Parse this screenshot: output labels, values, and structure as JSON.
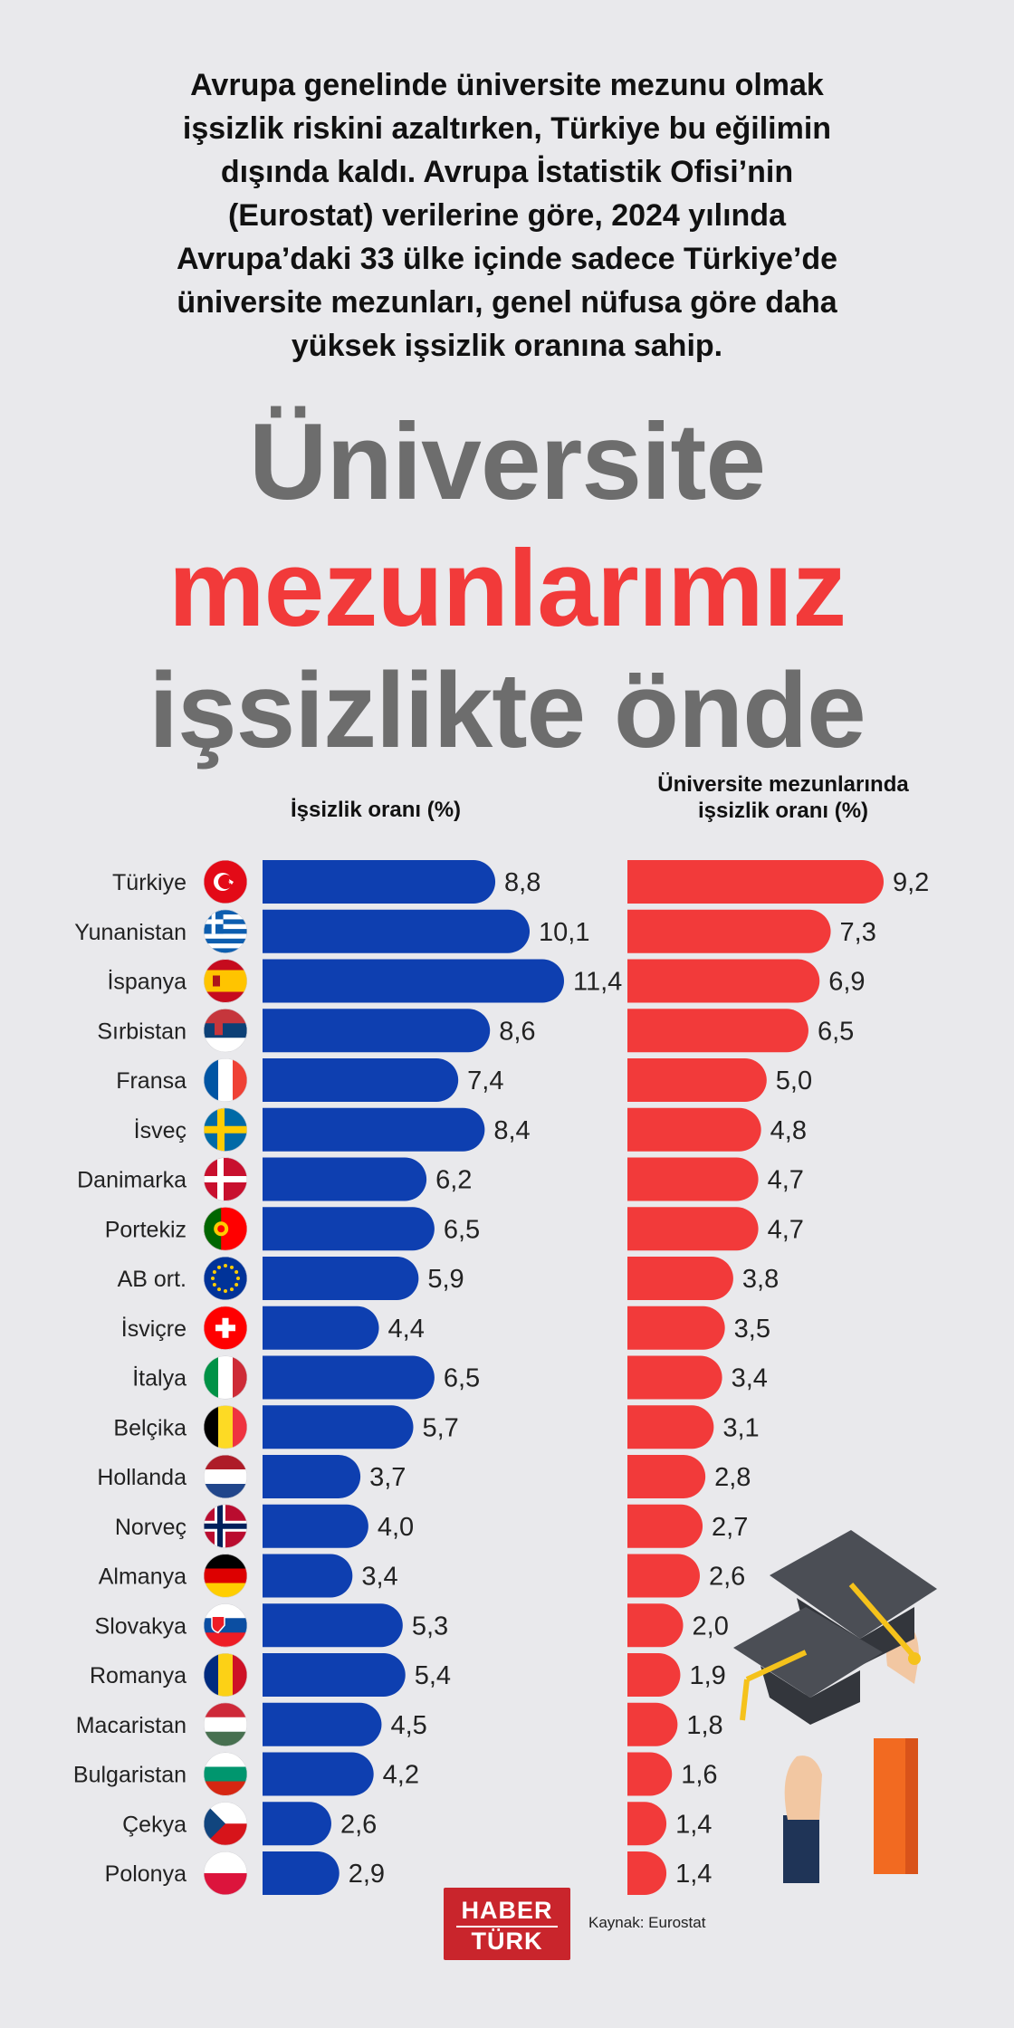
{
  "intro": [
    "Avrupa genelinde üniversite mezunu olmak",
    "işsizlik riskini azaltırken, Türkiye bu eğilimin",
    "dışında kaldı. Avrupa İstatistik Ofisi’nin",
    "(Eurostat) verilerine göre, 2024 yılında",
    "Avrupa’daki 33 ülke içinde sadece Türkiye’de",
    "üniversite mezunları, genel nüfusa göre daha",
    "yüksek işsizlik oranına sahip."
  ],
  "headline": {
    "line1": "Üniversite",
    "line2": "mezunlarımız",
    "line3": "işsizlikte önde"
  },
  "colors": {
    "left_bar": "#0e3fb0",
    "right_bar": "#f23a3a",
    "headline_gray": "#6d6d6d",
    "headline_red": "#f23a3a",
    "background": "#e9e9ec"
  },
  "chart_data": {
    "type": "bar",
    "orientation": "horizontal",
    "categories": [
      "Türkiye",
      "Yunanistan",
      "İspanya",
      "Sırbistan",
      "Fransa",
      "İsveç",
      "Danimarka",
      "Portekiz",
      "AB ort.",
      "İsviçre",
      "İtalya",
      "Belçika",
      "Hollanda",
      "Norveç",
      "Almanya",
      "Slovakya",
      "Romanya",
      "Macaristan",
      "Bulgaristan",
      "Çekya",
      "Polonya"
    ],
    "flags": [
      "turkey",
      "greece",
      "spain",
      "serbia",
      "france",
      "sweden",
      "denmark",
      "portugal",
      "eu",
      "switzerland",
      "italy",
      "belgium",
      "netherlands",
      "norway",
      "germany",
      "slovakia",
      "romania",
      "hungary",
      "bulgaria",
      "czechia",
      "poland"
    ],
    "series": [
      {
        "name": "İşsizlik oranı (%)",
        "values": [
          8.8,
          10.1,
          11.4,
          8.6,
          7.4,
          8.4,
          6.2,
          6.5,
          5.9,
          4.4,
          6.5,
          5.7,
          3.7,
          4.0,
          3.4,
          5.3,
          5.4,
          4.5,
          4.2,
          2.6,
          2.9
        ],
        "labels": [
          "8,8",
          "10,1",
          "11,4",
          "8,6",
          "7,4",
          "8,4",
          "6,2",
          "6,5",
          "5,9",
          "4,4",
          "6,5",
          "5,7",
          "3,7",
          "4,0",
          "3,4",
          "5,3",
          "5,4",
          "4,5",
          "4,2",
          "2,6",
          "2,9"
        ]
      },
      {
        "name": "Üniversite mezunlarında işsizlik oranı (%)",
        "name_lines": [
          "Üniversite mezunlarında",
          "işsizlik oranı (%)"
        ],
        "values": [
          9.2,
          7.3,
          6.9,
          6.5,
          5.0,
          4.8,
          4.7,
          4.7,
          3.8,
          3.5,
          3.4,
          3.1,
          2.8,
          2.7,
          2.6,
          2.0,
          1.9,
          1.8,
          1.6,
          1.4,
          1.4
        ],
        "labels": [
          "9,2",
          "7,3",
          "6,9",
          "6,5",
          "5,0",
          "4,8",
          "4,7",
          "4,7",
          "3,8",
          "3,5",
          "3,4",
          "3,1",
          "2,8",
          "2,7",
          "2,6",
          "2,0",
          "1,9",
          "1,8",
          "1,6",
          "1,4",
          "1,4"
        ]
      }
    ]
  },
  "footer": {
    "logo_line1": "HABER",
    "logo_line2": "TÜRK",
    "source": "Kaynak: Eurostat"
  }
}
